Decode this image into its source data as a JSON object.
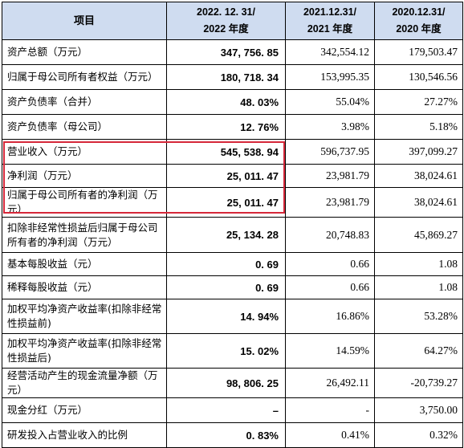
{
  "header": {
    "item": "项目",
    "col2022_line1": "2022. 12. 31/",
    "col2022_line2": "2022 年度",
    "col2021_line1": "2021.12.31/",
    "col2021_line2": "2021 年度",
    "col2020_line1": "2020.12.31/",
    "col2020_line2": "2020 年度"
  },
  "rows": [
    {
      "label": "资产总额（万元）",
      "v2022": "347, 756. 85",
      "v2021": "342,554.12",
      "v2020": "179,503.47"
    },
    {
      "label": "归属于母公司所有者权益（万元）",
      "v2022": "180, 718. 34",
      "v2021": "153,995.35",
      "v2020": "130,546.56"
    },
    {
      "label": "资产负债率（合并）",
      "v2022": "48. 03%",
      "v2021": "55.04%",
      "v2020": "27.27%"
    },
    {
      "label": "资产负债率（母公司）",
      "v2022": "12. 76%",
      "v2021": "3.98%",
      "v2020": "5.18%"
    },
    {
      "label": "营业收入（万元）",
      "v2022": "545, 538. 94",
      "v2021": "596,737.95",
      "v2020": "397,099.27"
    },
    {
      "label": "净利润（万元）",
      "v2022": "25, 011. 47",
      "v2021": "23,981.79",
      "v2020": "38,024.61"
    },
    {
      "label": "归属于母公司所有者的净利润（万元）",
      "v2022": "25, 011. 47",
      "v2021": "23,981.79",
      "v2020": "38,024.61"
    },
    {
      "label": "扣除非经常性损益后归属于母公司所有者的净利润（万元）",
      "v2022": "25, 134. 28",
      "v2021": "20,748.83",
      "v2020": "45,869.27"
    },
    {
      "label": "基本每股收益（元）",
      "v2022": "0. 69",
      "v2021": "0.66",
      "v2020": "1.08"
    },
    {
      "label": "稀释每股收益（元）",
      "v2022": "0. 69",
      "v2021": "0.66",
      "v2020": "1.08"
    },
    {
      "label": "加权平均净资产收益率(扣除非经常性损益前)",
      "v2022": "14. 94%",
      "v2021": "16.86%",
      "v2020": "53.28%"
    },
    {
      "label": "加权平均净资产收益率(扣除非经常性损益后)",
      "v2022": "15. 02%",
      "v2021": "14.59%",
      "v2020": "64.27%"
    },
    {
      "label": "经营活动产生的现金流量净额（万元）",
      "v2022": "98, 806. 25",
      "v2021": "26,492.11",
      "v2020": "-20,739.27"
    },
    {
      "label": "现金分红（万元）",
      "v2022": "–",
      "v2021": "-",
      "v2020": "3,750.00"
    },
    {
      "label": "研发投入占营业收入的比例",
      "v2022": "0. 83%",
      "v2021": "0.41%",
      "v2020": "0.32%"
    }
  ],
  "highlight_color": "#d6283a",
  "header_bg": "#cfdcf0"
}
